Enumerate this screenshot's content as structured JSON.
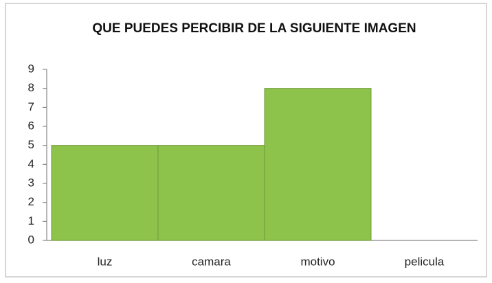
{
  "chart_data": {
    "type": "bar",
    "title": "QUE PUEDES PERCIBIR DE LA SIGUIENTE IMAGEN",
    "categories": [
      "luz",
      "camara",
      "motivo",
      "pelicula"
    ],
    "values": [
      5,
      5,
      8,
      0
    ],
    "color": "#8dc24b",
    "ylim": [
      0,
      9
    ],
    "yticks": [
      0,
      1,
      2,
      3,
      4,
      5,
      6,
      7,
      8,
      9
    ],
    "grid": false
  }
}
